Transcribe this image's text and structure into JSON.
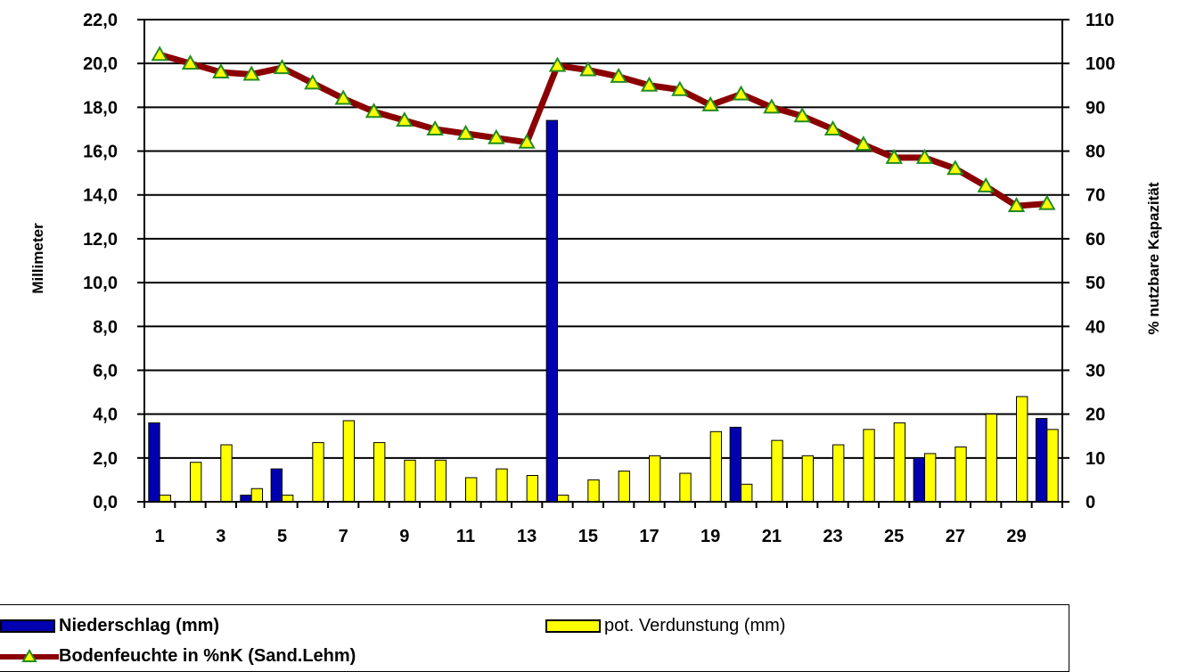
{
  "chart_data": {
    "type": "bar+line",
    "title": "",
    "ylabel": "Millimeter",
    "y2label": "% nutzbare Kapazität",
    "ylim": [
      0,
      22
    ],
    "y2lim": [
      0,
      110
    ],
    "y_ticks": [
      "0,0",
      "2,0",
      "4,0",
      "6,0",
      "8,0",
      "10,0",
      "12,0",
      "14,0",
      "16,0",
      "18,0",
      "20,0",
      "22,0"
    ],
    "y2_ticks": [
      "0",
      "10",
      "20",
      "30",
      "40",
      "50",
      "60",
      "70",
      "80",
      "90",
      "100",
      "110"
    ],
    "x_tick_labels": [
      "1",
      "3",
      "5",
      "7",
      "9",
      "11",
      "13",
      "15",
      "17",
      "19",
      "21",
      "23",
      "25",
      "27",
      "29"
    ],
    "grid": true,
    "legend_position": "bottom",
    "x": [
      1,
      2,
      3,
      4,
      5,
      6,
      7,
      8,
      9,
      10,
      11,
      12,
      13,
      14,
      15,
      16,
      17,
      18,
      19,
      20,
      21,
      22,
      23,
      24,
      25,
      26,
      27,
      28,
      29,
      30
    ],
    "series": [
      {
        "name": "Niederschlag (mm)",
        "type": "bar",
        "axis": "left",
        "color": "#0000b0",
        "values": [
          3.6,
          0,
          0,
          0.3,
          1.5,
          0,
          0,
          0,
          0,
          0,
          0,
          0,
          0,
          17.4,
          0,
          0,
          0,
          0,
          0,
          3.4,
          0,
          0,
          0,
          0,
          0,
          2.0,
          0,
          0,
          0,
          3.8
        ]
      },
      {
        "name": "pot. Verdunstung (mm)",
        "type": "bar",
        "axis": "left",
        "color": "#ffff00",
        "values": [
          0.3,
          1.8,
          2.6,
          0.6,
          0.3,
          2.7,
          3.7,
          2.7,
          1.9,
          1.9,
          1.1,
          1.5,
          1.2,
          0.3,
          1.0,
          1.4,
          2.1,
          1.3,
          3.2,
          0.8,
          2.8,
          2.1,
          2.6,
          3.3,
          3.6,
          2.2,
          2.5,
          4.0,
          4.8,
          3.3
        ]
      },
      {
        "name": "Bodenfeuchte in %nK (Sand.Lehm)",
        "type": "line",
        "axis": "right",
        "color": "#8b0000",
        "marker_color": "#ffff00",
        "values": [
          102,
          100,
          98,
          97.5,
          99,
          95.5,
          92,
          89,
          87,
          85,
          84,
          83,
          82,
          99.5,
          98.5,
          97,
          95,
          94,
          90.5,
          93,
          90,
          88,
          85,
          81.5,
          78.5,
          78.5,
          76,
          72,
          67.5,
          68
        ]
      }
    ]
  },
  "legend": {
    "items": [
      "Niederschlag (mm)",
      "pot. Verdunstung (mm)",
      "Bodenfeuchte in %nK (Sand.Lehm)"
    ]
  }
}
